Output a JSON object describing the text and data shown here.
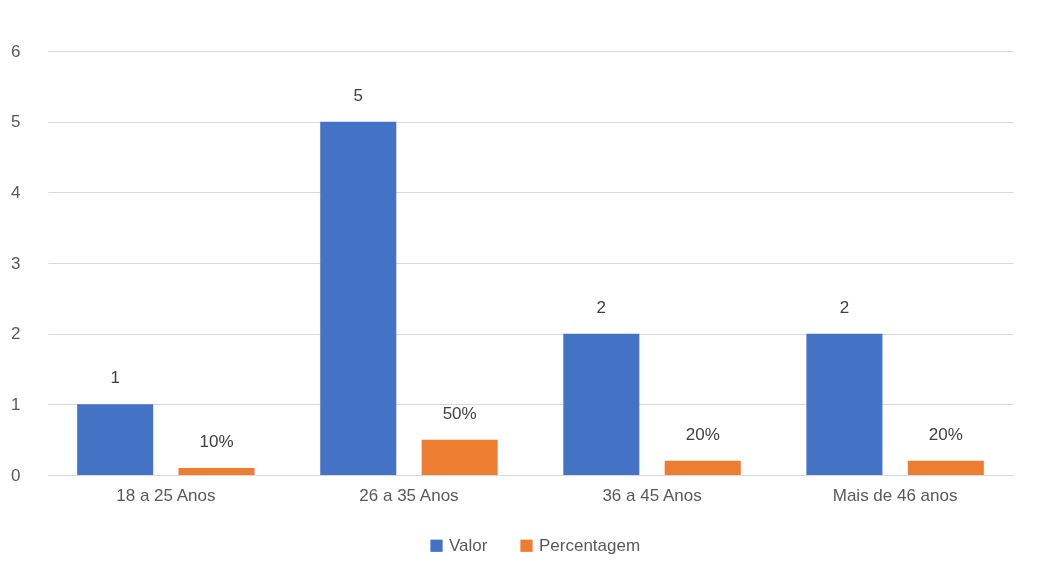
{
  "chart_data": {
    "type": "bar",
    "categories": [
      "18 a 25 Anos",
      "26 a 35 Anos",
      "36 a 45 Anos",
      "Mais de 46 anos"
    ],
    "series": [
      {
        "name": "Valor",
        "color": "#4472c4",
        "values": [
          1,
          5,
          2,
          2
        ],
        "value_labels": [
          "1",
          "5",
          "2",
          "2"
        ]
      },
      {
        "name": "Percentagem",
        "color": "#ed7d31",
        "values": [
          0.1,
          0.5,
          0.2,
          0.2
        ],
        "value_labels": [
          "10%",
          "50%",
          "20%",
          "20%"
        ]
      }
    ],
    "ylim": [
      0,
      6
    ],
    "yticks": [
      0,
      1,
      2,
      3,
      4,
      5,
      6
    ],
    "grid": "y",
    "legend": "bottom"
  }
}
